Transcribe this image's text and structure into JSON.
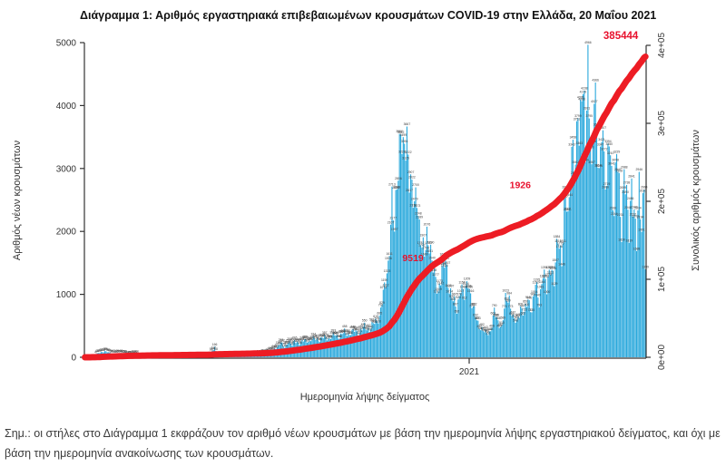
{
  "title": "Διάγραμμα 1: Αριθμός εργαστηριακά επιβεβαιωμένων κρουσμάτων COVID-19 στην Ελλάδα, 20 Μαΐου 2021",
  "footnote": "Σημ.: οι στήλες στο Διάγραμμα 1 εκφράζουν τον αριθμό νέων κρουσμάτων με βάση την ημερομηνία λήψης εργαστηριακού δείγματος, και όχι με βάση την ημερομηνία ανακοίνωσης των κρουσμάτων.",
  "colors": {
    "bar": "#29a8dc",
    "cumulative_line": "#ed1c24",
    "annotation": "#e8112d",
    "axis": "#333333",
    "bar_label": "#3a3a3a"
  },
  "chart_data": {
    "type": "bar+line",
    "title": "Διάγραμμα 1: Αριθμός εργαστηριακά επιβεβαιωμένων κρουσμάτων COVID-19 στην Ελλάδα, 20 Μαΐου 2021",
    "x_axis": {
      "label": "Ημερομηνία λήψης δείγματος",
      "tick_labels": [
        "2021"
      ],
      "tick_fractions": [
        0.685
      ]
    },
    "y_left": {
      "label": "Αριθμός νέων κρουσμάτων",
      "ticks": [
        0,
        1000,
        2000,
        3000,
        4000,
        5000
      ],
      "range": [
        0,
        5000
      ],
      "grid": false
    },
    "y_right": {
      "label": "Συνολικός αριθμός κρουσμάτων",
      "ticks": [
        "0e+00",
        "1e+05",
        "2e+05",
        "3e+05",
        "4e+05"
      ],
      "tick_values": [
        0,
        100000,
        200000,
        300000,
        400000
      ],
      "range": [
        0,
        400000
      ]
    },
    "bar_series": {
      "name": "daily-new-cases",
      "days_total": 450,
      "anchors": [
        [
          0,
          5
        ],
        [
          4,
          15
        ],
        [
          8,
          40
        ],
        [
          12,
          75
        ],
        [
          16,
          95
        ],
        [
          20,
          70
        ],
        [
          25,
          55
        ],
        [
          30,
          65
        ],
        [
          35,
          40
        ],
        [
          40,
          55
        ],
        [
          45,
          30
        ],
        [
          50,
          35
        ],
        [
          55,
          20
        ],
        [
          60,
          25
        ],
        [
          65,
          15
        ],
        [
          70,
          25
        ],
        [
          75,
          15
        ],
        [
          80,
          20
        ],
        [
          85,
          25
        ],
        [
          90,
          18
        ],
        [
          95,
          25
        ],
        [
          100,
          40
        ],
        [
          104,
          165
        ],
        [
          106,
          30
        ],
        [
          110,
          35
        ],
        [
          115,
          28
        ],
        [
          120,
          40
        ],
        [
          125,
          30
        ],
        [
          130,
          45
        ],
        [
          135,
          35
        ],
        [
          140,
          55
        ],
        [
          145,
          75
        ],
        [
          150,
          110
        ],
        [
          155,
          180
        ],
        [
          157,
          230
        ],
        [
          160,
          160
        ],
        [
          163,
          250
        ],
        [
          166,
          190
        ],
        [
          168,
          280
        ],
        [
          172,
          210
        ],
        [
          176,
          290
        ],
        [
          180,
          240
        ],
        [
          184,
          320
        ],
        [
          188,
          260
        ],
        [
          192,
          340
        ],
        [
          196,
          280
        ],
        [
          200,
          380
        ],
        [
          204,
          310
        ],
        [
          208,
          420
        ],
        [
          212,
          350
        ],
        [
          216,
          440
        ],
        [
          220,
          380
        ],
        [
          224,
          500
        ],
        [
          228,
          430
        ],
        [
          232,
          560
        ],
        [
          236,
          640
        ],
        [
          240,
          1100
        ],
        [
          243,
          1500
        ],
        [
          246,
          2412
        ],
        [
          248,
          2000
        ],
        [
          250,
          2900
        ],
        [
          253,
          3602
        ],
        [
          255,
          3100
        ],
        [
          258,
          3562
        ],
        [
          260,
          3000
        ],
        [
          262,
          2600
        ],
        [
          264,
          2341
        ],
        [
          266,
          2660
        ],
        [
          268,
          2100
        ],
        [
          270,
          1750
        ],
        [
          272,
          1600
        ],
        [
          274,
          1950
        ],
        [
          276,
          1868
        ],
        [
          278,
          1500
        ],
        [
          280,
          1300
        ],
        [
          283,
          1050
        ],
        [
          286,
          1400
        ],
        [
          289,
          1504
        ],
        [
          292,
          1100
        ],
        [
          295,
          900
        ],
        [
          298,
          750
        ],
        [
          301,
          1150
        ],
        [
          304,
          950
        ],
        [
          307,
          1250
        ],
        [
          310,
          850
        ],
        [
          313,
          650
        ],
        [
          316,
          500
        ],
        [
          319,
          420
        ],
        [
          322,
          380
        ],
        [
          325,
          420
        ],
        [
          328,
          720
        ],
        [
          331,
          560
        ],
        [
          334,
          480
        ],
        [
          337,
          900
        ],
        [
          340,
          941
        ],
        [
          343,
          620
        ],
        [
          346,
          540
        ],
        [
          349,
          810
        ],
        [
          352,
          680
        ],
        [
          355,
          920
        ],
        [
          358,
          760
        ],
        [
          361,
          1150
        ],
        [
          364,
          880
        ],
        [
          367,
          1380
        ],
        [
          370,
          1050
        ],
        [
          373,
          1520
        ],
        [
          376,
          1200
        ],
        [
          379,
          1910
        ],
        [
          382,
          1600
        ],
        [
          385,
          2620
        ],
        [
          387,
          2100
        ],
        [
          389,
          3080
        ],
        [
          391,
          3465
        ],
        [
          393,
          2800
        ],
        [
          395,
          4050
        ],
        [
          396,
          3300
        ],
        [
          398,
          4690
        ],
        [
          400,
          3900
        ],
        [
          401,
          3200
        ],
        [
          403,
          4430
        ],
        [
          405,
          3600
        ],
        [
          406,
          2950
        ],
        [
          408,
          4309
        ],
        [
          410,
          3500
        ],
        [
          412,
          2800
        ],
        [
          414,
          3970
        ],
        [
          416,
          3150
        ],
        [
          418,
          2520
        ],
        [
          420,
          3620
        ],
        [
          422,
          2950
        ],
        [
          424,
          2320
        ],
        [
          426,
          3245
        ],
        [
          428,
          2650
        ],
        [
          430,
          2060
        ],
        [
          432,
          3060
        ],
        [
          434,
          2450
        ],
        [
          436,
          1950
        ],
        [
          438,
          2845
        ],
        [
          440,
          2330
        ],
        [
          442,
          1760
        ],
        [
          444,
          2665
        ],
        [
          446,
          2120
        ],
        [
          448,
          2905
        ],
        [
          449,
          1450
        ]
      ]
    },
    "line_series": {
      "name": "cumulative-cases",
      "final_value": 385444,
      "annotations": [
        {
          "text": "9519",
          "fx": 0.585,
          "fy": 0.695,
          "size": 10.5
        },
        {
          "text": "1926",
          "fx": 0.776,
          "fy": 0.462,
          "size": 10.5
        },
        {
          "text": "385444",
          "fx": 0.955,
          "fy": -0.012,
          "size": 11.5
        }
      ]
    }
  }
}
